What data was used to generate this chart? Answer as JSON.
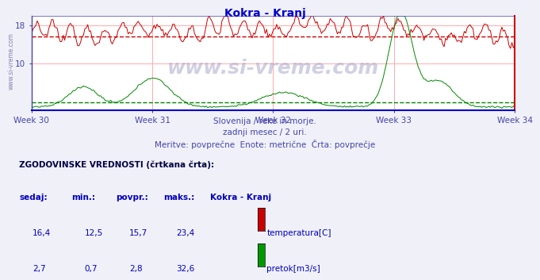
{
  "title": "Kokra - Kranj",
  "title_color": "#0000cc",
  "bg_color": "#f0f0f8",
  "plot_bg_color": "#ffffff",
  "grid_color": "#ffaaaa",
  "subtitle_lines": [
    "Slovenija / reke in morje.",
    "zadnji mesec / 2 uri.",
    "Meritve: povprečne  Enote: metrične  Črta: povprečje"
  ],
  "subtitle_color": "#4444aa",
  "watermark": "www.si-vreme.com",
  "x_labels": [
    "Week 30",
    "Week 31",
    "Week 32",
    "Week 33",
    "Week 34"
  ],
  "x_label_color": "#4444aa",
  "y_ticks": [
    10,
    18
  ],
  "y_tick_color": "#4444aa",
  "temp_color": "#cc0000",
  "flow_color": "#008800",
  "temp_avg": 15.7,
  "flow_avg": 2.8,
  "temp_data_max": 23.4,
  "flow_data_max": 32.6,
  "ylim_max": 20.0,
  "n_points": 336,
  "left_label": "www.si-vreme.com",
  "table_header": "ZGODOVINSKE VREDNOSTI (črtkana črta):",
  "table_cols": [
    "sedaj:",
    "min.:",
    "povpr.:",
    "maks.:",
    "Kokra - Kranj"
  ],
  "table_row1": [
    "16,4",
    "12,5",
    "15,7",
    "23,4",
    "temperatura[C]"
  ],
  "table_row2": [
    "2,7",
    "0,7",
    "2,8",
    "32,6",
    "pretok[m3/s]"
  ],
  "table_color": "#0000bb",
  "table_header_color": "#000044",
  "spine_bottom_color": "#0000cc",
  "spine_right_color": "#cc0000",
  "spine_left_color": "#4444aa",
  "spine_top_color": "#4444aa"
}
